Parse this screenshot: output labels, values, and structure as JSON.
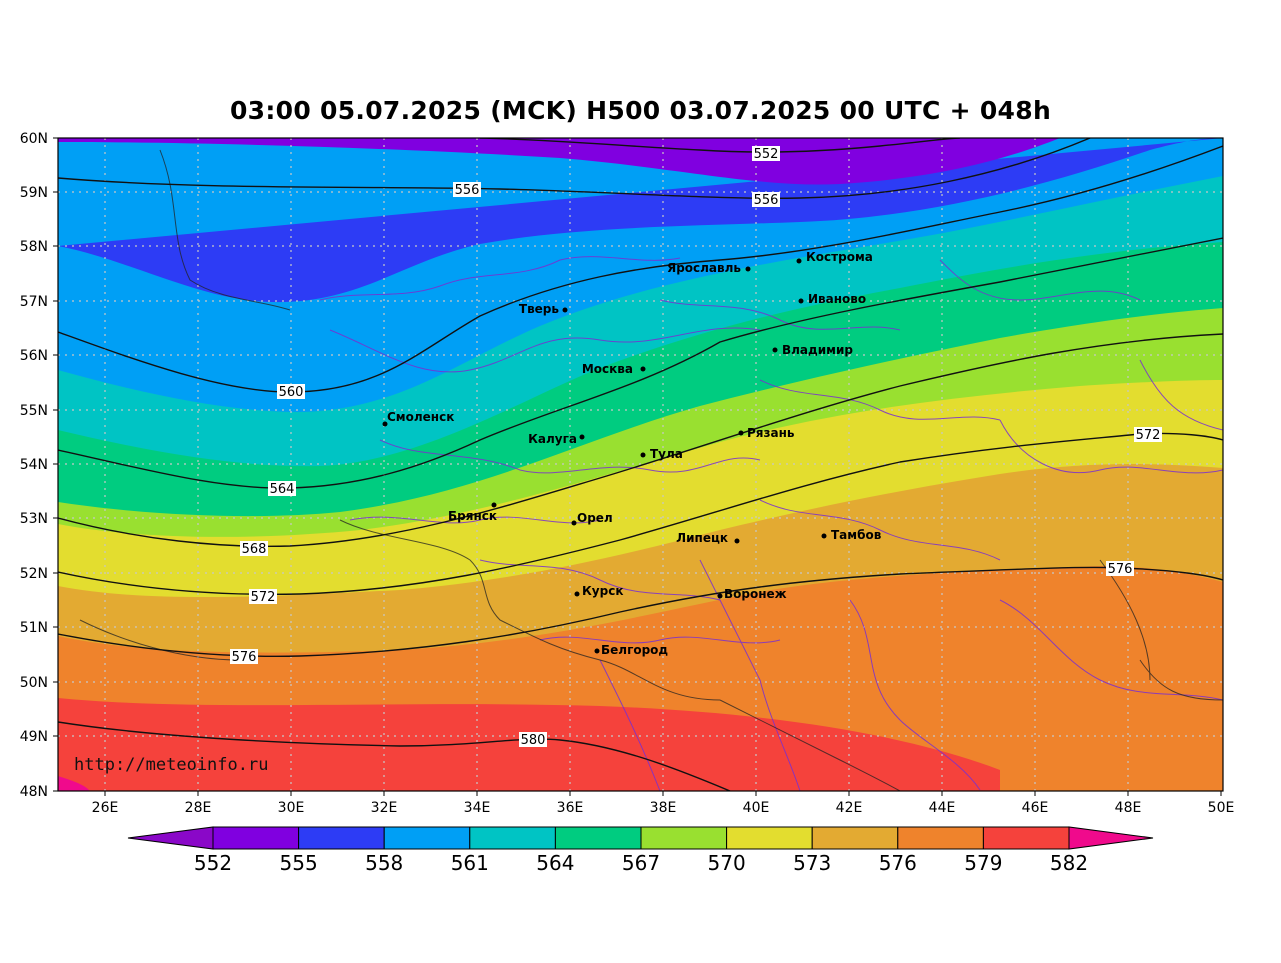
{
  "title": "03:00 05.07.2025 (MCK) H500  03.07.2025 00 UTC + 048h",
  "source_label": "http://meteoinfo.ru",
  "lon_ticks": [
    "26E",
    "28E",
    "30E",
    "32E",
    "34E",
    "36E",
    "38E",
    "40E",
    "42E",
    "44E",
    "46E",
    "48E",
    "50E"
  ],
  "lat_ticks": [
    "48N",
    "49N",
    "50N",
    "51N",
    "52N",
    "53N",
    "54N",
    "55N",
    "56N",
    "57N",
    "58N",
    "59N",
    "60N"
  ],
  "colorbar": {
    "labels": [
      "552",
      "555",
      "558",
      "561",
      "564",
      "567",
      "570",
      "573",
      "576",
      "579",
      "582"
    ],
    "colors": [
      "#8000e0",
      "#2d3cf5",
      "#009ff5",
      "#00c4c4",
      "#00cc80",
      "#99e030",
      "#e3dd2f",
      "#e3aa32",
      "#ef832c",
      "#f5423c"
    ],
    "under_color": "#8a08c8",
    "over_color": "#f00a8c"
  },
  "contours": [
    {
      "value": "552",
      "labels": [
        "552"
      ]
    },
    {
      "value": "556",
      "labels": [
        "556",
        "556"
      ]
    },
    {
      "value": "560",
      "labels": [
        "560"
      ]
    },
    {
      "value": "564",
      "labels": [
        "564"
      ]
    },
    {
      "value": "568",
      "labels": [
        "568"
      ]
    },
    {
      "value": "572",
      "labels": [
        "572",
        "572"
      ]
    },
    {
      "value": "576",
      "labels": [
        "576",
        "576"
      ]
    },
    {
      "value": "580",
      "labels": [
        "580"
      ]
    }
  ],
  "cities": [
    {
      "name": "Кострома"
    },
    {
      "name": "Ярославль"
    },
    {
      "name": "Иваново"
    },
    {
      "name": "Тверь"
    },
    {
      "name": "Владимир"
    },
    {
      "name": "Москва"
    },
    {
      "name": "Смоленск"
    },
    {
      "name": "Калуга"
    },
    {
      "name": "Рязань"
    },
    {
      "name": "Тула"
    },
    {
      "name": "Брянск"
    },
    {
      "name": "Орел"
    },
    {
      "name": "Тамбов"
    },
    {
      "name": "Липецк"
    },
    {
      "name": "Курск"
    },
    {
      "name": "Воронеж"
    },
    {
      "name": "Белгород"
    }
  ]
}
